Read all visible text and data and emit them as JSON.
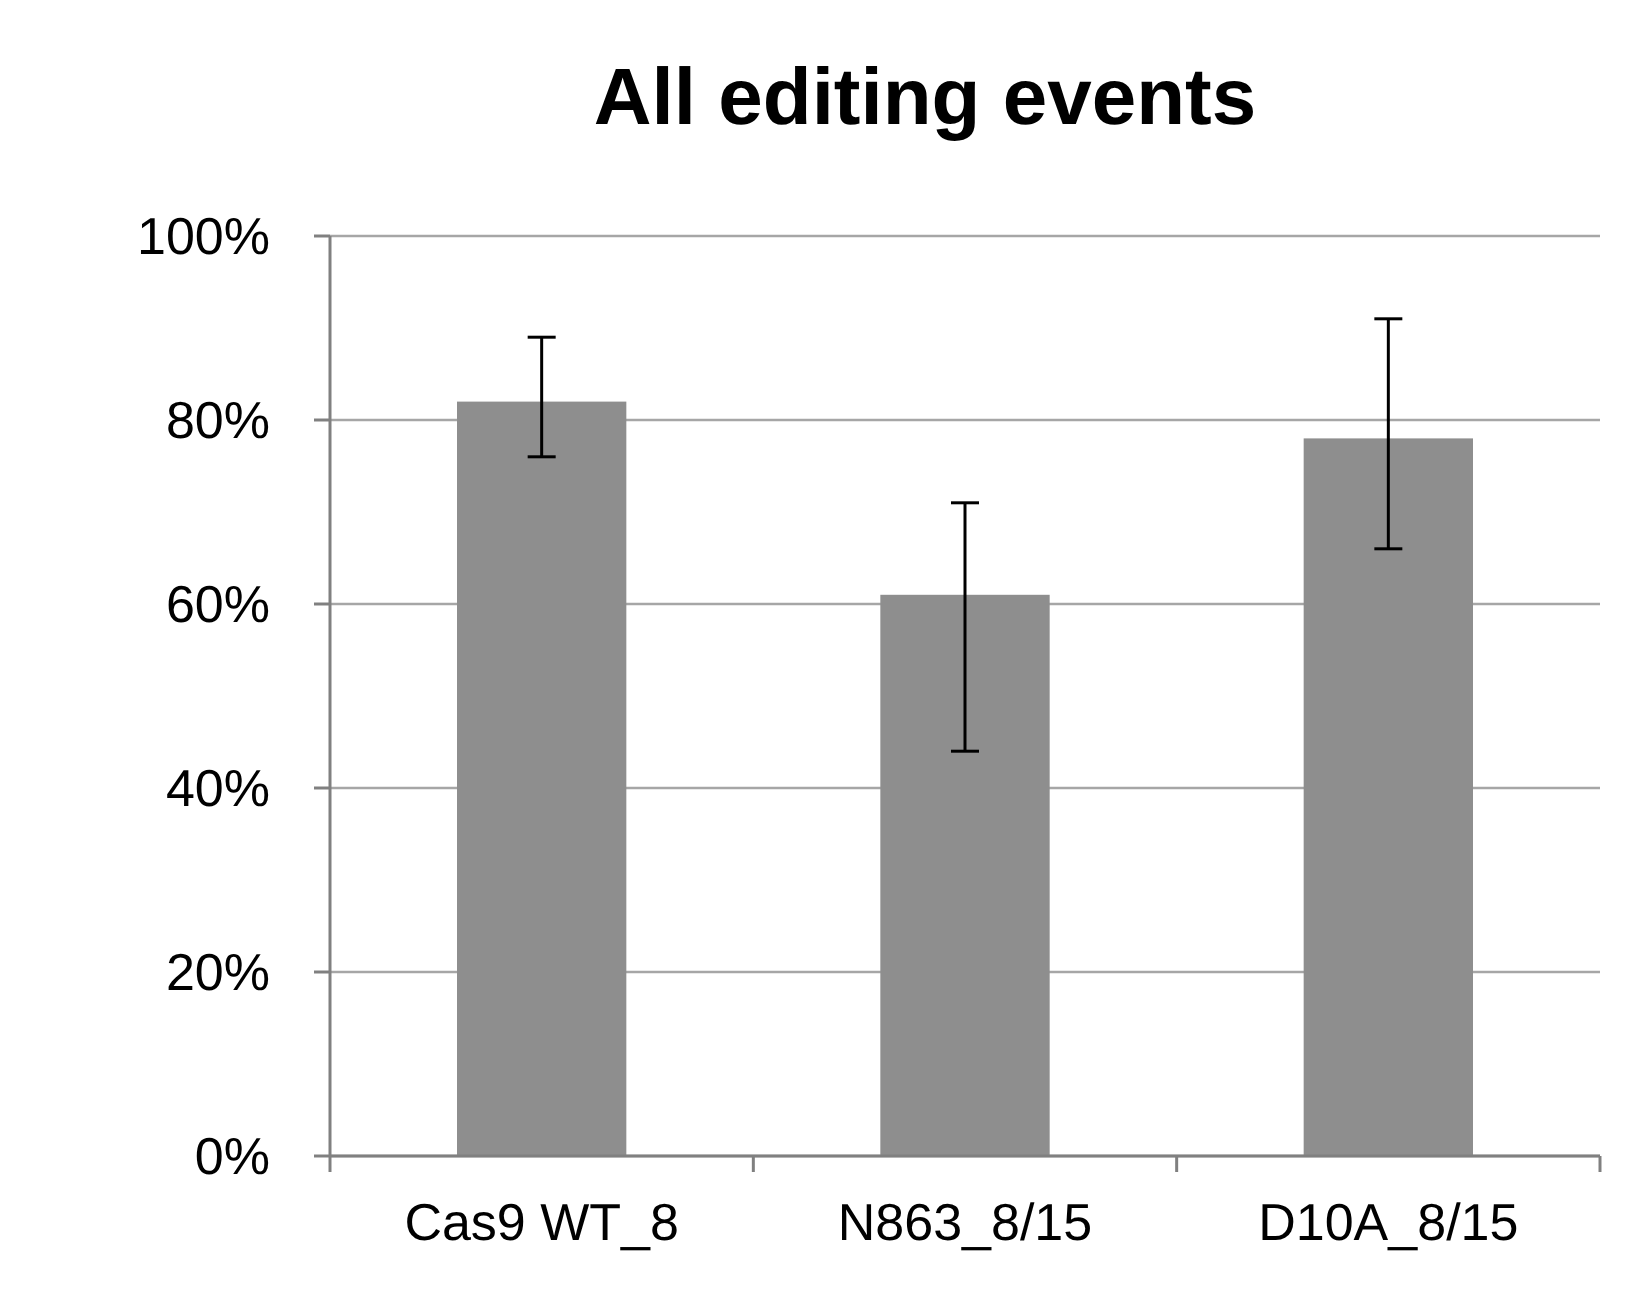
{
  "chart_data": {
    "type": "bar",
    "title": "All editing events",
    "categories": [
      "Cas9 WT_8",
      "N863_8/15",
      "D10A_8/15"
    ],
    "values": [
      82,
      61,
      78
    ],
    "errors": [
      [
        76,
        89
      ],
      [
        44,
        71
      ],
      [
        66,
        91
      ]
    ],
    "color": "#8e8e8e",
    "ylim": [
      0,
      100
    ],
    "yticks": [
      {
        "value": 0,
        "label": "0%"
      },
      {
        "value": 20,
        "label": "20%"
      },
      {
        "value": 40,
        "label": "40%"
      },
      {
        "value": 60,
        "label": "60%"
      },
      {
        "value": 80,
        "label": "80%"
      },
      {
        "value": 100,
        "label": "100%"
      }
    ],
    "grid": "y"
  }
}
